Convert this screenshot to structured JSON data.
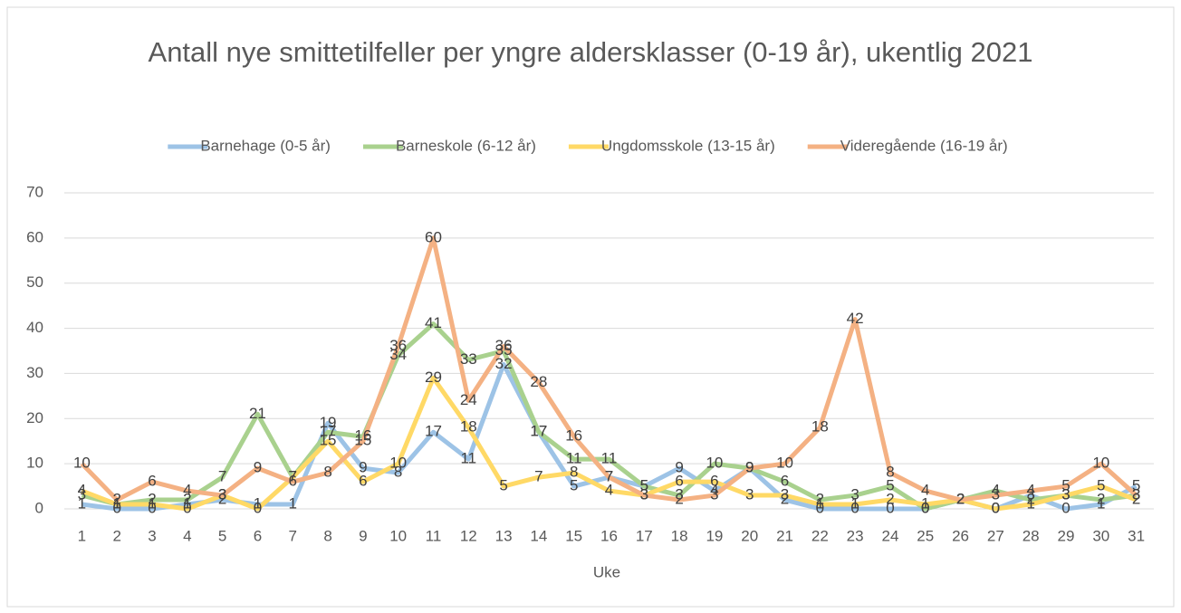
{
  "chart_data": {
    "type": "line",
    "title": "Antall nye smittetilfeller per yngre aldersklasser (0-19 år), ukentlig 2021",
    "x_label": "Uke",
    "categories": [
      "1",
      "2",
      "3",
      "4",
      "5",
      "6",
      "7",
      "8",
      "9",
      "10",
      "11",
      "12",
      "13",
      "14",
      "15",
      "16",
      "17",
      "18",
      "19",
      "20",
      "21",
      "22",
      "23",
      "24",
      "25",
      "26",
      "27",
      "28",
      "29",
      "30",
      "31"
    ],
    "series": [
      {
        "name": "Barnehage (0-5 år)",
        "color": "#9dc3e6",
        "values": [
          1,
          0,
          0,
          1,
          2,
          1,
          1,
          19,
          9,
          8,
          17,
          11,
          32,
          17,
          5,
          7,
          5,
          9,
          4,
          9,
          2,
          0,
          0,
          0,
          0,
          2,
          0,
          3,
          0,
          1,
          5
        ]
      },
      {
        "name": "Barneskole (6-12 år)",
        "color": "#a9d18e",
        "values": [
          3,
          1,
          2,
          2,
          7,
          21,
          7,
          17,
          16,
          34,
          41,
          33,
          35,
          17,
          11,
          11,
          5,
          3,
          10,
          9,
          6,
          2,
          3,
          5,
          0,
          2,
          4,
          2,
          3,
          2,
          3
        ]
      },
      {
        "name": "Ungdomsskole (13-15 år)",
        "color": "#ffd966",
        "values": [
          4,
          1,
          1,
          0,
          3,
          0,
          7,
          15,
          6,
          10,
          29,
          18,
          5,
          7,
          8,
          4,
          3,
          6,
          6,
          3,
          3,
          1,
          1,
          2,
          1,
          2,
          0,
          1,
          3,
          5,
          2
        ]
      },
      {
        "name": "Videregående (16-19 år)",
        "color": "#f4b183",
        "values": [
          10,
          2,
          6,
          4,
          3,
          9,
          6,
          8,
          15,
          36,
          60,
          24,
          36,
          28,
          16,
          7,
          3,
          2,
          3,
          9,
          10,
          18,
          42,
          8,
          4,
          2,
          3,
          4,
          5,
          10,
          3
        ]
      }
    ],
    "ylim": [
      0,
      70
    ],
    "yticks": [
      0,
      10,
      20,
      30,
      40,
      50,
      60,
      70
    ],
    "grid": true,
    "legend": "top"
  }
}
